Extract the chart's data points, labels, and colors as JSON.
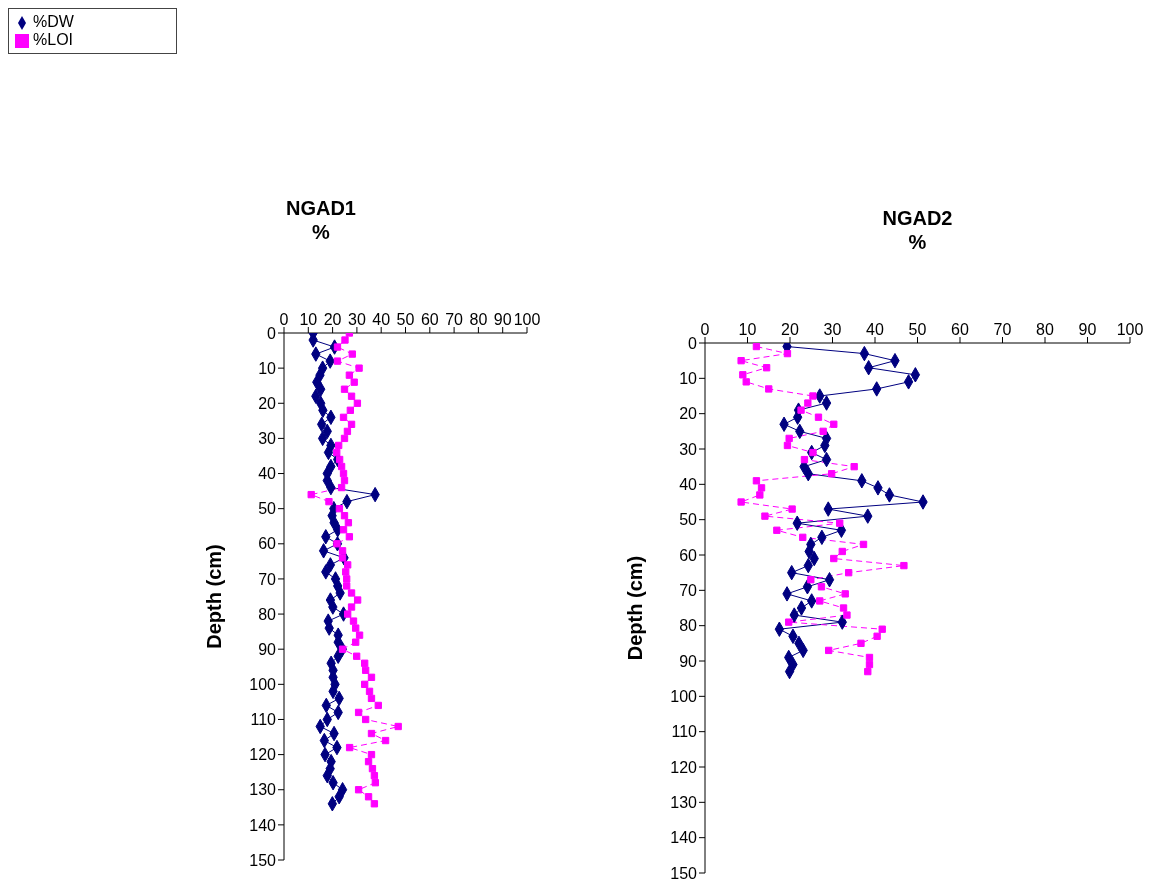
{
  "chart_data": [
    {
      "type": "line",
      "title": "NGAD1",
      "xlabel": "%",
      "ylabel": "Depth (cm)",
      "xlim": [
        0,
        100
      ],
      "xticks": [
        0,
        10,
        20,
        30,
        40,
        50,
        60,
        70,
        80,
        90,
        100
      ],
      "ylim": [
        150,
        0
      ],
      "yticks": [
        0,
        10,
        20,
        30,
        40,
        50,
        60,
        70,
        80,
        90,
        100,
        110,
        120,
        130,
        140,
        150
      ],
      "legend": "top left",
      "series": [
        {
          "name": "%DW",
          "color": "#000080",
          "marker": "diamond",
          "line_style": "solid",
          "x": [
            12.0,
            12.0,
            20.8,
            13.1,
            19.0,
            15.9,
            14.8,
            13.5,
            15.1,
            13.1,
            15.1,
            16.0,
            19.3,
            15.5,
            17.8,
            15.9,
            19.3,
            18.3,
            22.1,
            19.3,
            17.8,
            17.8,
            19.3,
            37.5,
            25.9,
            20.5,
            19.8,
            20.6,
            22.1,
            17.2,
            22.0,
            16.3,
            24.7,
            19.1,
            17.2,
            21.2,
            22.1,
            23.1,
            19.1,
            20.1,
            24.5,
            18.2,
            18.6,
            22.3,
            22.3,
            24.0,
            22.3,
            19.4,
            20.2,
            20.2,
            21.0,
            20.2,
            22.7,
            17.4,
            22.3,
            17.8,
            14.9,
            20.6,
            16.6,
            21.8,
            16.9,
            19.4,
            19.0,
            17.8,
            20.2,
            24.1,
            22.7,
            19.9
          ],
          "values": [
            0,
            2,
            4,
            6,
            8,
            10,
            12,
            14,
            16,
            18,
            20,
            22,
            24,
            26,
            28,
            30,
            32,
            34,
            36,
            38,
            40,
            42,
            44,
            46,
            48,
            50,
            52,
            54,
            56,
            58,
            60,
            62,
            64,
            66,
            68,
            70,
            72,
            74,
            76,
            78,
            80,
            82,
            84,
            86,
            88,
            90,
            92,
            94,
            96,
            98,
            100,
            102,
            104,
            106,
            108,
            110,
            112,
            114,
            116,
            118,
            120,
            122,
            124,
            126,
            128,
            130,
            132,
            134
          ]
        },
        {
          "name": "%LOI",
          "color": "#ff00ff",
          "marker": "square",
          "line_style": "dashed",
          "x": [
            26.9,
            25.1,
            22.0,
            28.1,
            22.0,
            30.9,
            26.9,
            28.9,
            24.9,
            27.8,
            30.2,
            27.3,
            24.5,
            27.8,
            26.1,
            24.9,
            22.5,
            21.7,
            22.9,
            23.7,
            24.5,
            24.9,
            23.7,
            11.2,
            18.5,
            22.8,
            24.9,
            26.5,
            24.5,
            26.9,
            21.8,
            24.1,
            24.1,
            26.2,
            25.4,
            25.8,
            25.8,
            27.8,
            30.3,
            27.8,
            26.2,
            28.6,
            29.5,
            31.1,
            29.5,
            24.1,
            29.9,
            33.2,
            33.6,
            36.0,
            33.2,
            35.2,
            36.0,
            38.8,
            30.7,
            33.6,
            47.0,
            36.0,
            41.8,
            27.0,
            36.0,
            34.8,
            36.4,
            37.2,
            37.6,
            30.7,
            34.8,
            37.2
          ],
          "values": [
            0,
            2,
            4,
            6,
            8,
            10,
            12,
            14,
            16,
            18,
            20,
            22,
            24,
            26,
            28,
            30,
            32,
            34,
            36,
            38,
            40,
            42,
            44,
            46,
            48,
            50,
            52,
            54,
            56,
            58,
            60,
            62,
            64,
            66,
            68,
            70,
            72,
            74,
            76,
            78,
            80,
            82,
            84,
            86,
            88,
            90,
            92,
            94,
            96,
            98,
            100,
            102,
            104,
            106,
            108,
            110,
            112,
            114,
            116,
            118,
            120,
            122,
            124,
            126,
            128,
            130,
            132,
            134
          ]
        }
      ]
    },
    {
      "type": "line",
      "title": "NGAD2",
      "xlabel": "%",
      "ylabel": "Depth (cm)",
      "xlim": [
        0,
        100
      ],
      "xticks": [
        0,
        10,
        20,
        30,
        40,
        50,
        60,
        70,
        80,
        90,
        100
      ],
      "ylim": [
        150,
        0
      ],
      "yticks": [
        0,
        10,
        20,
        30,
        40,
        50,
        60,
        70,
        80,
        90,
        100,
        110,
        120,
        130,
        140,
        150
      ],
      "series": [
        {
          "color": "#000080",
          "marker": "diamond",
          "line_style": "solid",
          "x": [
            19.3,
            37.5,
            44.7,
            38.5,
            49.5,
            47.9,
            40.4,
            27.0,
            28.6,
            22.0,
            21.8,
            18.6,
            22.3,
            28.6,
            28.2,
            25.1,
            28.6,
            23.3,
            24.3,
            36.9,
            40.7,
            43.4,
            51.3,
            29.0,
            38.3,
            21.7,
            32.1,
            27.5,
            24.9,
            24.5,
            25.7,
            24.3,
            20.4,
            29.3,
            24.1,
            19.3,
            25.1,
            22.7,
            21.0,
            32.3,
            17.5,
            20.7,
            22.1,
            23.1,
            19.7,
            20.7,
            19.9
          ],
          "values": [
            1,
            3,
            5,
            7,
            9,
            11,
            13,
            15,
            17,
            19,
            21,
            23,
            25,
            27,
            29,
            31,
            33,
            35,
            37,
            39,
            41,
            43,
            45,
            47,
            49,
            51,
            53,
            55,
            57,
            59,
            61,
            63,
            65,
            67,
            69,
            71,
            73,
            75,
            77,
            79,
            81,
            83,
            85,
            87,
            89,
            91,
            93
          ]
        },
        {
          "color": "#ff00ff",
          "marker": "square",
          "line_style": "dashed",
          "x": [
            12.1,
            19.4,
            8.5,
            14.5,
            8.9,
            9.7,
            15.0,
            25.4,
            24.2,
            22.6,
            26.7,
            30.3,
            27.8,
            19.8,
            19.4,
            25.4,
            23.4,
            35.1,
            29.8,
            12.1,
            13.3,
            12.9,
            8.5,
            20.5,
            14.1,
            31.7,
            16.9,
            23.0,
            37.3,
            32.3,
            30.3,
            46.8,
            33.8,
            24.9,
            27.4,
            33.0,
            27.0,
            32.6,
            33.4,
            19.7,
            41.7,
            40.5,
            36.7,
            29.1,
            38.7,
            38.7,
            38.3
          ],
          "values": [
            1,
            3,
            5,
            7,
            9,
            11,
            13,
            15,
            17,
            19,
            21,
            23,
            25,
            27,
            29,
            31,
            33,
            35,
            37,
            39,
            41,
            43,
            45,
            47,
            49,
            51,
            53,
            55,
            57,
            59,
            61,
            63,
            65,
            67,
            69,
            71,
            73,
            75,
            77,
            79,
            81,
            83,
            85,
            87,
            89,
            91,
            93
          ]
        }
      ]
    }
  ]
}
